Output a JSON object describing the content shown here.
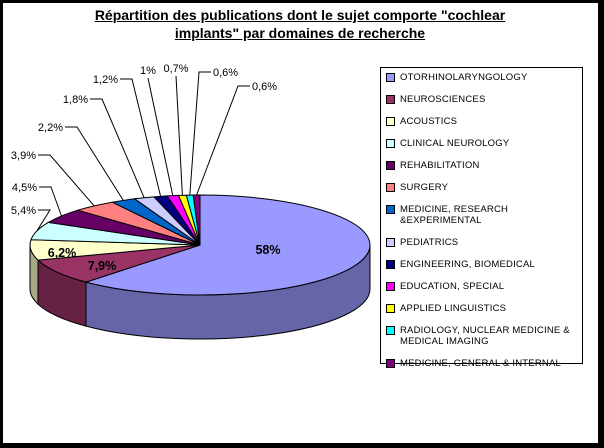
{
  "window": {
    "background": "#FFFFFF",
    "frame_color": "#000000"
  },
  "chart_data": {
    "type": "pie",
    "three_d": true,
    "title": "Répartition des publications dont le sujet comporte \"cochlear implants\" par domaines de recherche",
    "title_lines": [
      "Répartition des publications dont le sujet comporte \"cochlear",
      "implants\" par domaines de recherche"
    ],
    "legend_position": "right",
    "grid": false,
    "start_angle_deg": 0,
    "direction": "clockwise",
    "series": [
      {
        "name": "OTORHINOLARYNGOLOGY",
        "value": 58,
        "label": "58%",
        "color": "#9999FF"
      },
      {
        "name": "NEUROSCIENCES",
        "value": 7.9,
        "label": "7,9%",
        "color": "#993366"
      },
      {
        "name": "ACOUSTICS",
        "value": 6.2,
        "label": "6,2%",
        "color": "#FFFFCC"
      },
      {
        "name": "CLINICAL NEUROLOGY",
        "value": 5.4,
        "label": "5,4%",
        "color": "#CCFFFF"
      },
      {
        "name": "REHABILITATION",
        "value": 4.5,
        "label": "4,5%",
        "color": "#660066"
      },
      {
        "name": "SURGERY",
        "value": 3.9,
        "label": "3,9%",
        "color": "#FF8080"
      },
      {
        "name": "MEDICINE, RESEARCH &EXPERIMENTAL",
        "value": 2.2,
        "label": "2,2%",
        "color": "#0066CC"
      },
      {
        "name": "PEDIATRICS",
        "value": 1.8,
        "label": "1,8%",
        "color": "#CCCCFF"
      },
      {
        "name": "ENGINEERING, BIOMEDICAL",
        "value": 1.2,
        "label": "1,2%",
        "color": "#000080"
      },
      {
        "name": "EDUCATION, SPECIAL",
        "value": 1,
        "label": "1%",
        "color": "#FF00FF"
      },
      {
        "name": "APPLIED LINGUISTICS",
        "value": 0.7,
        "label": "0,7%",
        "color": "#FFFF00"
      },
      {
        "name": "RADIOLOGY, NUCLEAR MEDICINE & MEDICAL IMAGING",
        "value": 0.6,
        "label": "0,6%",
        "color": "#00FFFF"
      },
      {
        "name": "MEDICINE, GENERAL & INTERNAL",
        "value": 0.6,
        "label": "0,6%",
        "color": "#800080"
      }
    ]
  }
}
